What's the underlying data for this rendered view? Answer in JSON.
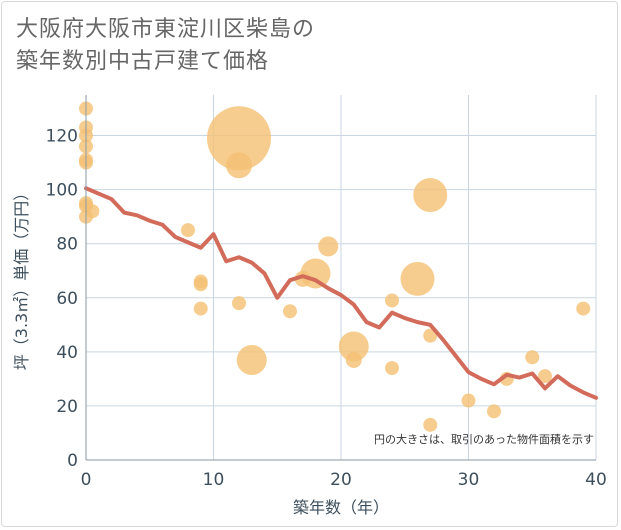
{
  "title_line1": "大阪府大阪市東淀川区柴島の",
  "title_line2": "築年数別中古戸建て価格",
  "colors": {
    "bubble": "#f4c173",
    "line": "#d36b5a",
    "grid": "#c9d6e2",
    "text": "#3d4f5c"
  },
  "chart_data": {
    "type": "scatter",
    "xlabel": "築年数（年）",
    "ylabel": "坪（3.3㎡）単価（万円）",
    "xlim": [
      0,
      40
    ],
    "ylim": [
      0,
      135
    ],
    "xticks": [
      0,
      10,
      20,
      30,
      40
    ],
    "yticks": [
      0,
      20,
      40,
      60,
      80,
      100,
      120
    ],
    "grid": true,
    "note": "円の大きさは、取引のあった物件面積を示す",
    "bubbles": [
      {
        "x": 0,
        "y": 130,
        "r": 7
      },
      {
        "x": 0,
        "y": 123,
        "r": 7
      },
      {
        "x": 0,
        "y": 120,
        "r": 7
      },
      {
        "x": 0,
        "y": 116,
        "r": 7
      },
      {
        "x": 0,
        "y": 111,
        "r": 7
      },
      {
        "x": 0,
        "y": 110,
        "r": 7
      },
      {
        "x": 0,
        "y": 95,
        "r": 7
      },
      {
        "x": 0,
        "y": 94,
        "r": 7
      },
      {
        "x": 0,
        "y": 90,
        "r": 7
      },
      {
        "x": 0.5,
        "y": 92,
        "r": 7
      },
      {
        "x": 8,
        "y": 85,
        "r": 7
      },
      {
        "x": 9,
        "y": 66,
        "r": 7
      },
      {
        "x": 9,
        "y": 65,
        "r": 7
      },
      {
        "x": 9,
        "y": 56,
        "r": 7
      },
      {
        "x": 12,
        "y": 119,
        "r": 32
      },
      {
        "x": 12,
        "y": 109,
        "r": 13
      },
      {
        "x": 12,
        "y": 58,
        "r": 7
      },
      {
        "x": 13,
        "y": 37,
        "r": 15
      },
      {
        "x": 16,
        "y": 55,
        "r": 7
      },
      {
        "x": 17,
        "y": 67,
        "r": 8
      },
      {
        "x": 18,
        "y": 69,
        "r": 15
      },
      {
        "x": 19,
        "y": 79,
        "r": 10
      },
      {
        "x": 21,
        "y": 42,
        "r": 15
      },
      {
        "x": 21,
        "y": 37,
        "r": 8
      },
      {
        "x": 24,
        "y": 59,
        "r": 7
      },
      {
        "x": 24,
        "y": 34,
        "r": 7
      },
      {
        "x": 26,
        "y": 67,
        "r": 17
      },
      {
        "x": 27,
        "y": 98,
        "r": 17
      },
      {
        "x": 27,
        "y": 46,
        "r": 7
      },
      {
        "x": 27,
        "y": 13,
        "r": 7
      },
      {
        "x": 30,
        "y": 22,
        "r": 7
      },
      {
        "x": 32,
        "y": 18,
        "r": 7
      },
      {
        "x": 33,
        "y": 30,
        "r": 7
      },
      {
        "x": 35,
        "y": 38,
        "r": 7
      },
      {
        "x": 36,
        "y": 31,
        "r": 7
      },
      {
        "x": 39,
        "y": 56,
        "r": 7
      }
    ],
    "trend": {
      "x": [
        0,
        1,
        2,
        3,
        4,
        5,
        6,
        7,
        8,
        9,
        10,
        11,
        12,
        13,
        14,
        15,
        16,
        17,
        18,
        19,
        20,
        21,
        22,
        23,
        24,
        25,
        26,
        27,
        28,
        29,
        30,
        31,
        32,
        33,
        34,
        35,
        36,
        37,
        38,
        39,
        40
      ],
      "y": [
        100.5,
        98.5,
        96.5,
        91.5,
        90.5,
        88.5,
        87,
        82.5,
        80.5,
        78.5,
        83.5,
        73.5,
        75,
        73,
        69,
        60,
        66.5,
        68,
        66.5,
        63.5,
        61,
        57.5,
        51,
        49,
        54.5,
        52.5,
        51,
        50,
        44.5,
        38.5,
        32.5,
        30,
        28,
        31.5,
        30.5,
        32,
        26.5,
        31,
        27.5,
        25,
        23
      ]
    }
  }
}
